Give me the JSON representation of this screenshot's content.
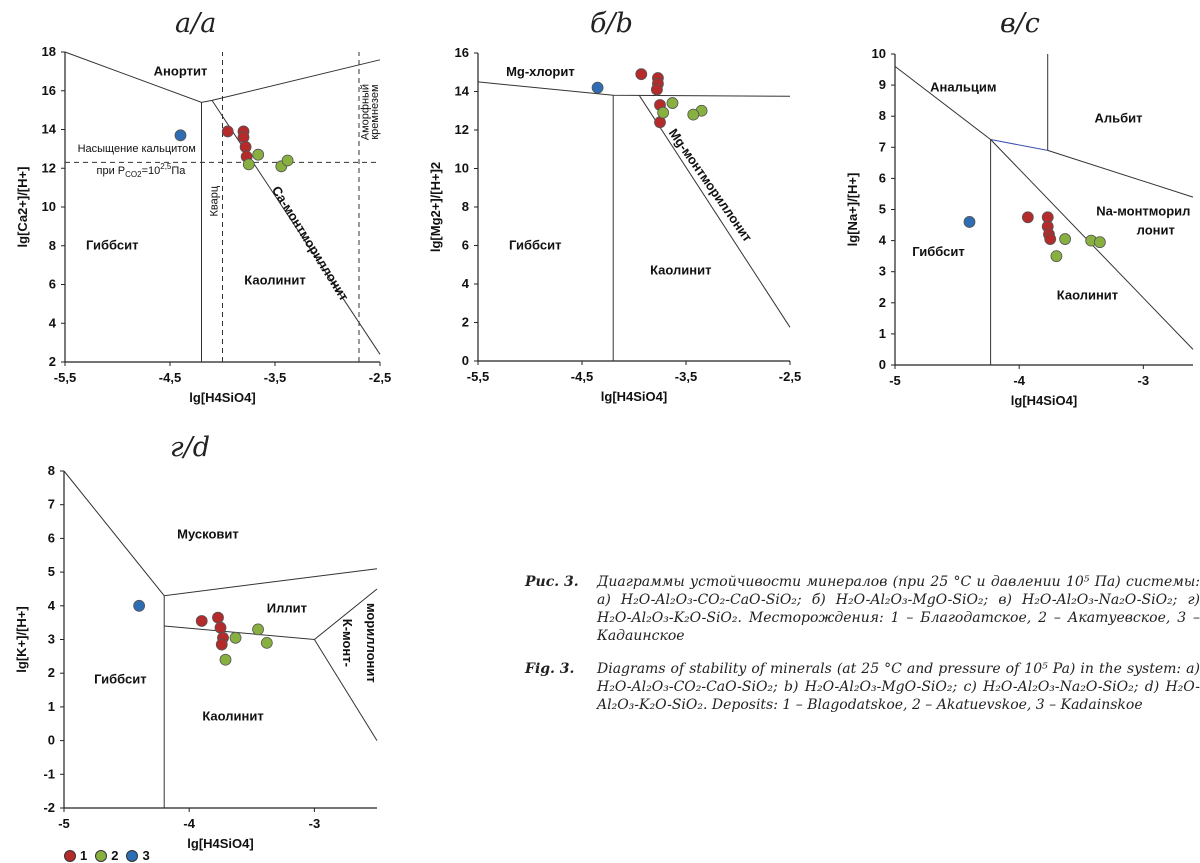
{
  "chart_data": [
    {
      "type": "scatter",
      "title": "а/a",
      "xlabel": "lg[H4SiO4]",
      "ylabel": "lg[Ca2+]/[H+]",
      "xlim": [
        -5.5,
        -2.5
      ],
      "ylim": [
        2,
        18
      ],
      "xticks": [
        -5.5,
        -4.5,
        -3.5,
        -2.5
      ],
      "yticks": [
        2,
        4,
        6,
        8,
        10,
        12,
        14,
        16,
        18
      ],
      "xticklabels": [
        "-5,5",
        "-4,5",
        "-3,5",
        "-2,5"
      ],
      "regions": [
        {
          "label": "Анортит",
          "x": -4.4,
          "y": 16.8
        },
        {
          "label": "Гиббсит",
          "x": -5.05,
          "y": 7.8
        },
        {
          "label": "Каолинит",
          "x": -3.5,
          "y": 6.0
        },
        {
          "label": "Ca-монтмориллонит",
          "x": -3.2,
          "y": 8.0,
          "rotate": 58
        }
      ],
      "annotations": [
        "Насыщение кальцитом",
        "при P",
        "CO2",
        "=10",
        "2,5",
        "Па",
        "Кварц",
        "Аморфный кремнезем"
      ],
      "series": [
        {
          "name": "1",
          "color": "#b52a2a",
          "points": [
            [
              -3.95,
              13.9
            ],
            [
              -3.8,
              13.9
            ],
            [
              -3.8,
              13.6
            ],
            [
              -3.78,
              13.1
            ],
            [
              -3.77,
              12.6
            ]
          ]
        },
        {
          "name": "2",
          "color": "#88b040",
          "points": [
            [
              -3.66,
              12.7
            ],
            [
              -3.75,
              12.2
            ],
            [
              -3.44,
              12.1
            ],
            [
              -3.38,
              12.4
            ]
          ]
        },
        {
          "name": "3",
          "color": "#2e6db4",
          "points": [
            [
              -4.4,
              13.7
            ]
          ]
        }
      ]
    },
    {
      "type": "scatter",
      "title": "б/b",
      "xlabel": "lg[H4SiO4]",
      "ylabel": "lg[Mg2+]/[H+]2",
      "xlim": [
        -5.5,
        -2.5
      ],
      "ylim": [
        0,
        16
      ],
      "xticks": [
        -5.5,
        -4.5,
        -3.5,
        -2.5
      ],
      "yticks": [
        0,
        2,
        4,
        6,
        8,
        10,
        12,
        14,
        16
      ],
      "xticklabels": [
        "-5,5",
        "-4,5",
        "-3,5",
        "-2,5"
      ],
      "regions": [
        {
          "label": "Mg-хлорит",
          "x": -4.9,
          "y": 14.8
        },
        {
          "label": "Гиббсит",
          "x": -4.95,
          "y": 5.8
        },
        {
          "label": "Каолинит",
          "x": -3.55,
          "y": 4.5
        },
        {
          "label": "Mg-монтмориллонит",
          "x": -3.3,
          "y": 9.0,
          "rotate": 55
        }
      ],
      "series": [
        {
          "name": "1",
          "color": "#b52a2a",
          "points": [
            [
              -3.93,
              14.9
            ],
            [
              -3.77,
              14.7
            ],
            [
              -3.77,
              14.4
            ],
            [
              -3.78,
              14.1
            ],
            [
              -3.75,
              13.3
            ],
            [
              -3.75,
              12.4
            ]
          ]
        },
        {
          "name": "2",
          "color": "#88b040",
          "points": [
            [
              -3.63,
              13.4
            ],
            [
              -3.72,
              12.9
            ],
            [
              -3.35,
              13.0
            ],
            [
              -3.43,
              12.8
            ]
          ]
        },
        {
          "name": "3",
          "color": "#2e6db4",
          "points": [
            [
              -4.35,
              14.2
            ]
          ]
        }
      ]
    },
    {
      "type": "scatter",
      "title": "в/c",
      "xlabel": "lg[H4SiO4]",
      "ylabel": "lg[Na+]/[H+]",
      "xlim": [
        -5,
        -2.6
      ],
      "ylim": [
        0,
        10
      ],
      "xticks": [
        -5,
        -4,
        -3
      ],
      "yticks": [
        0,
        1,
        2,
        3,
        4,
        5,
        6,
        7,
        8,
        9,
        10
      ],
      "xticklabels": [
        "-5",
        "-4",
        "-3"
      ],
      "regions": [
        {
          "label": "Анальцим",
          "x": -4.45,
          "y": 8.8
        },
        {
          "label": "Альбит",
          "x": -3.2,
          "y": 7.8
        },
        {
          "label": "Na-монтморил",
          "x": -3.0,
          "y": 4.8
        },
        {
          "label": "лонит",
          "x": -2.9,
          "y": 4.2
        },
        {
          "label": "Гиббсит",
          "x": -4.65,
          "y": 3.5
        },
        {
          "label": "Каолинит",
          "x": -3.45,
          "y": 2.1
        }
      ],
      "series": [
        {
          "name": "1",
          "color": "#b52a2a",
          "points": [
            [
              -3.93,
              4.75
            ],
            [
              -3.77,
              4.75
            ],
            [
              -3.77,
              4.45
            ],
            [
              -3.76,
              4.2
            ],
            [
              -3.75,
              4.05
            ]
          ]
        },
        {
          "name": "2",
          "color": "#88b040",
          "points": [
            [
              -3.63,
              4.05
            ],
            [
              -3.7,
              3.5
            ],
            [
              -3.42,
              4.0
            ],
            [
              -3.35,
              3.95
            ]
          ]
        },
        {
          "name": "3",
          "color": "#2e6db4",
          "points": [
            [
              -4.4,
              4.6
            ]
          ]
        }
      ]
    },
    {
      "type": "scatter",
      "title": "г/d",
      "xlabel": "lg[H4SiO4]",
      "ylabel": "lg[K+]/[H+]",
      "xlim": [
        -5,
        -2.5
      ],
      "ylim": [
        -2,
        8
      ],
      "xticks": [
        -5,
        -4,
        -3
      ],
      "yticks": [
        -2,
        -1,
        0,
        1,
        2,
        3,
        4,
        5,
        6,
        7,
        8
      ],
      "xticklabels": [
        "-5",
        "-4",
        "-3"
      ],
      "regions": [
        {
          "label": "Мусковит",
          "x": -3.85,
          "y": 6.0
        },
        {
          "label": "Иллит",
          "x": -3.22,
          "y": 3.8
        },
        {
          "label": "Гиббсит",
          "x": -4.55,
          "y": 1.7
        },
        {
          "label": "Каолинит",
          "x": -3.65,
          "y": 0.6
        },
        {
          "label": "К-монт-",
          "x": -2.77,
          "y": 2.9,
          "rotate": 90
        },
        {
          "label": "мориллонит",
          "x": -2.58,
          "y": 2.9,
          "rotate": 90
        }
      ],
      "series": [
        {
          "name": "1",
          "color": "#b52a2a",
          "points": [
            [
              -3.9,
              3.55
            ],
            [
              -3.77,
              3.65
            ],
            [
              -3.75,
              3.35
            ],
            [
              -3.73,
              3.05
            ],
            [
              -3.74,
              2.85
            ]
          ]
        },
        {
          "name": "2",
          "color": "#88b040",
          "points": [
            [
              -3.63,
              3.05
            ],
            [
              -3.71,
              2.4
            ],
            [
              -3.45,
              3.3
            ],
            [
              -3.38,
              2.9
            ]
          ]
        },
        {
          "name": "3",
          "color": "#2e6db4",
          "points": [
            [
              -4.4,
              4.0
            ]
          ]
        }
      ]
    }
  ],
  "legend": [
    {
      "label": "1",
      "color": "#b52a2a"
    },
    {
      "label": "2",
      "color": "#88b040"
    },
    {
      "label": "3",
      "color": "#2e6db4"
    }
  ],
  "caption_ru": {
    "label": "Рис. 3.",
    "text": "Диаграммы устойчивости минералов (при 25 °С и давлении 10⁵ Па) системы: а) H₂O-Al₂O₃-CO₂-CaO-SiO₂; б) H₂O-Al₂O₃-MgO-SiO₂; в) H₂O-Al₂O₃-Na₂O-SiO₂; г) H₂O-Al₂O₃-K₂O-SiO₂. Месторождения: 1 – Благодатское, 2 – Акатуевское, 3 – Кадаинское"
  },
  "caption_en": {
    "label": "Fig. 3.",
    "text": "Diagrams of stability of minerals (at 25 °C and pressure of 10⁵ Pa) in the system: a) H₂O-Al₂O₃-CO₂-CaO-SiO₂; b) H₂O-Al₂O₃-MgO-SiO₂; c) H₂O-Al₂O₃-Na₂O-SiO₂; d) H₂O-Al₂O₃-K₂O-SiO₂. Deposits: 1 – Blagodatskoe, 2 – Akatuevskoe, 3 – Kadainskoe"
  }
}
